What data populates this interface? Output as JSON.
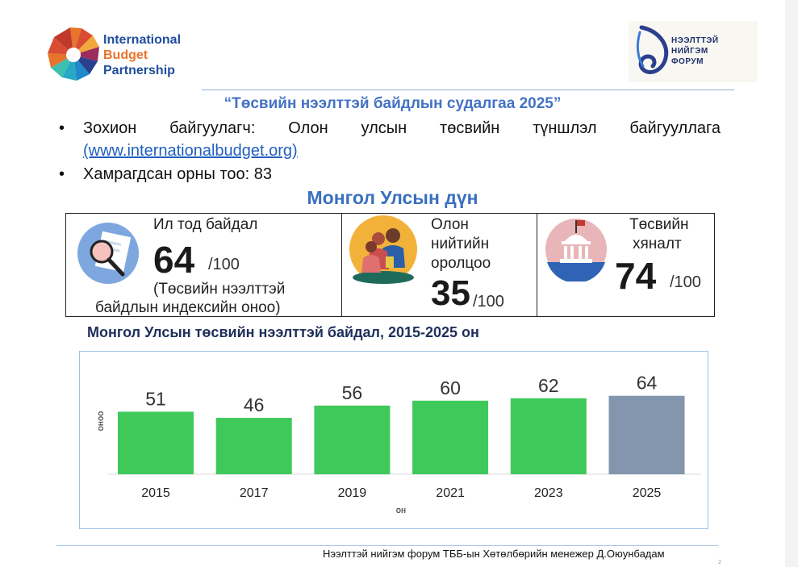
{
  "logos": {
    "ibp_line1": "International",
    "ibp_line2": "Budget",
    "ibp_line3": "Partnership",
    "osf_line1": "НЭЭЛТТЭЙ",
    "osf_line2": "НИЙГЭМ",
    "osf_line3": "ФОРУМ"
  },
  "title": "“Төсвийн нээлттэй байдлын судалгаа 2025”",
  "bullets": {
    "organizer_label": "Зохион байгуулагч: Олон улсын төсвийн түншлэл байгууллага",
    "organizer_link": "(www.internationalbudget.org)",
    "countries": "Хамрагдсан орны тоо: 83"
  },
  "subtitle": "Монгол Улсын дүн",
  "scores": {
    "transparency": {
      "label": "Ил тод байдал",
      "value": "64",
      "scale": "/100",
      "note_line1": "(Төсвийн нээлттэй",
      "note_line2": "байдлын индексийн оноо)",
      "icon": "magnifier-document-icon"
    },
    "participation": {
      "label_line1": "Олон",
      "label_line2": "нийтийн",
      "label_line3": "оролцоо",
      "value": "35",
      "scale": "/100",
      "icon": "people-group-icon"
    },
    "oversight": {
      "label_line1": "Төсвийн",
      "label_line2": "хяналт",
      "value": "74",
      "scale": "/100",
      "icon": "government-building-icon"
    }
  },
  "chart_title": "Монгол Улсын төсвийн нээлттэй байдал, 2015-2025 он",
  "chart_data": {
    "type": "bar",
    "categories": [
      "2015",
      "2017",
      "2019",
      "2021",
      "2023",
      "2025"
    ],
    "values": [
      51,
      46,
      56,
      60,
      62,
      64
    ],
    "xlabel": "он",
    "ylabel": "оноо",
    "ylim": [
      0,
      100
    ],
    "colors": [
      "#3ec95a",
      "#3ec95a",
      "#3ec95a",
      "#3ec95a",
      "#3ec95a",
      "#8496ae"
    ],
    "grid": false,
    "data_labels": true
  },
  "footer": "Нээлттэй нийгэм форум ТББ-ын  Хөтөлбөрийн менежер Д.Оюунбадам",
  "page_number": "2"
}
